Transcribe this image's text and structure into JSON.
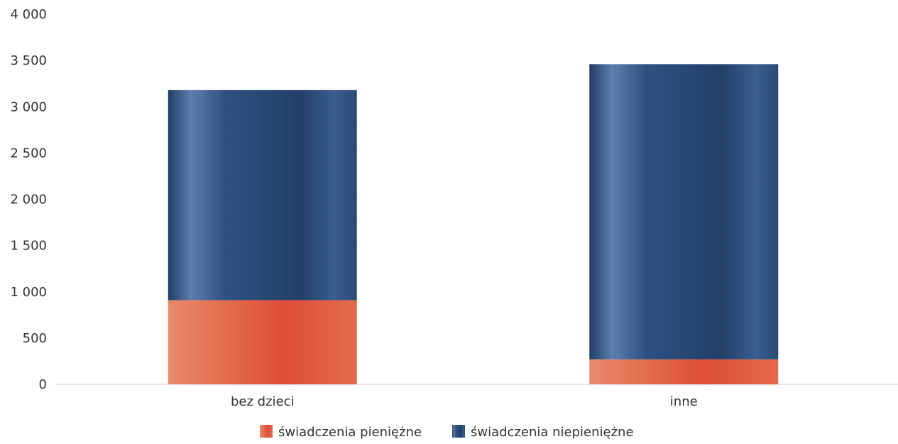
{
  "chart_data": {
    "type": "bar",
    "stacked": true,
    "categories": [
      "bez dzieci",
      "inne"
    ],
    "series": [
      {
        "name": "świadczenia pieniężne",
        "values": [
          910,
          270
        ],
        "color": "#e0674a"
      },
      {
        "name": "świadczenia niepieniężne",
        "values": [
          2270,
          3190
        ],
        "color": "#2a4a75"
      }
    ],
    "ylim": [
      0,
      4000
    ],
    "yticks": [
      0,
      500,
      1000,
      1500,
      2000,
      2500,
      3000,
      3500,
      4000
    ],
    "ytick_labels": [
      "0",
      "500",
      "1 000",
      "1 500",
      "2 000",
      "2 500",
      "3 000",
      "3 500",
      "4 000"
    ],
    "grid": false,
    "legend_position": "bottom",
    "title": "",
    "xlabel": "",
    "ylabel": ""
  }
}
